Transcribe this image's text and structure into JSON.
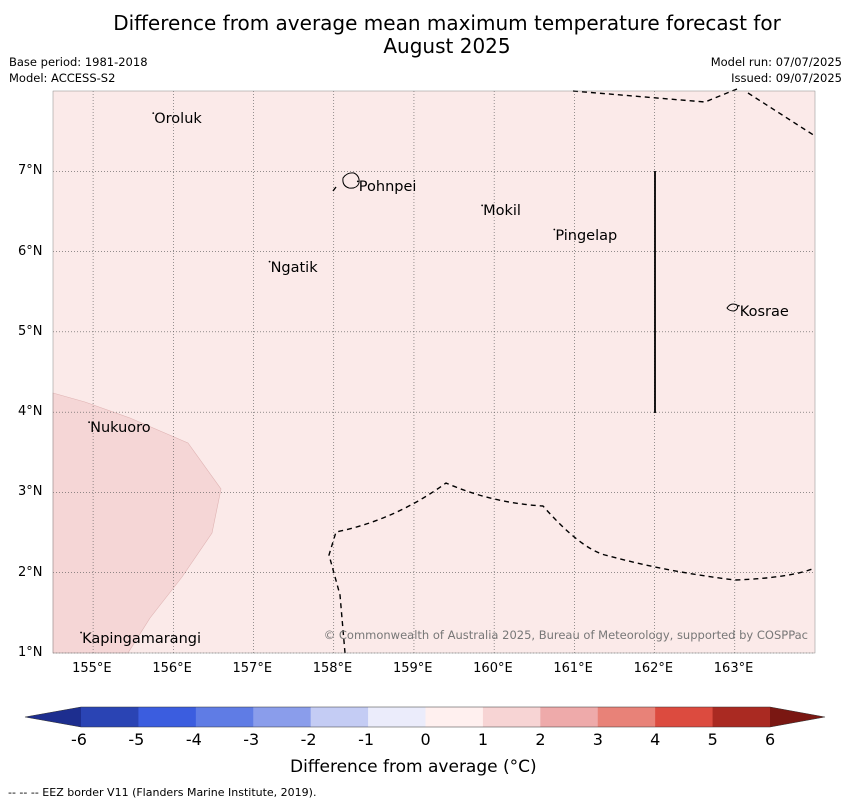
{
  "title_line1": "Difference from average mean maximum temperature forecast for",
  "title_line2": "August 2025",
  "base_period": "Base period: 1981-2018",
  "model": "Model: ACCESS-S2",
  "model_run": "Model run: 07/07/2025",
  "issued": "Issued: 09/07/2025",
  "map": {
    "lon_range": [
      154.5,
      164
    ],
    "lat_range": [
      1,
      8
    ],
    "lon_ticks": [
      "155°E",
      "156°E",
      "157°E",
      "158°E",
      "159°E",
      "160°E",
      "161°E",
      "162°E",
      "163°E"
    ],
    "lat_ticks": [
      "1°N",
      "2°N",
      "3°N",
      "4°N",
      "5°N",
      "6°N",
      "7°N"
    ],
    "background_color": "#fbeae9",
    "anomaly_region_color": "#f5d6d6",
    "places": [
      {
        "name": "Oroluk",
        "lon": 155.75,
        "lat": 7.65
      },
      {
        "name": "Pohnpei",
        "lon": 158.3,
        "lat": 6.8
      },
      {
        "name": "Mokil",
        "lon": 159.85,
        "lat": 6.5
      },
      {
        "name": "Pingelap",
        "lon": 160.75,
        "lat": 6.2
      },
      {
        "name": "Ngatik",
        "lon": 157.2,
        "lat": 5.8
      },
      {
        "name": "Kosrae",
        "lon": 163.05,
        "lat": 5.25
      },
      {
        "name": "Nukuoro",
        "lon": 154.95,
        "lat": 3.8
      },
      {
        "name": "Kapingamarangi",
        "lon": 154.85,
        "lat": 1.18
      }
    ],
    "credit": "© Commonwealth of Australia 2025, Bureau of Meteorology, supported by COSPPac"
  },
  "colorbar": {
    "ticks": [
      "-6",
      "-5",
      "-4",
      "-3",
      "-2",
      "-1",
      "0",
      "1",
      "2",
      "3",
      "4",
      "5",
      "6"
    ],
    "colors": [
      "#1d2e8f",
      "#2a44b4",
      "#3b5ddf",
      "#5f7ce5",
      "#8a9deb",
      "#c4ccf4",
      "#ebecfb",
      "#fff0ef",
      "#f7d4d4",
      "#eeaaaa",
      "#e88278",
      "#dc4b3f",
      "#aa2a22",
      "#7a1712"
    ],
    "label": "Difference from average (°C)"
  },
  "footnote": "--  --  -- EEZ border V11 (Flanders Marine Institute, 2019)."
}
